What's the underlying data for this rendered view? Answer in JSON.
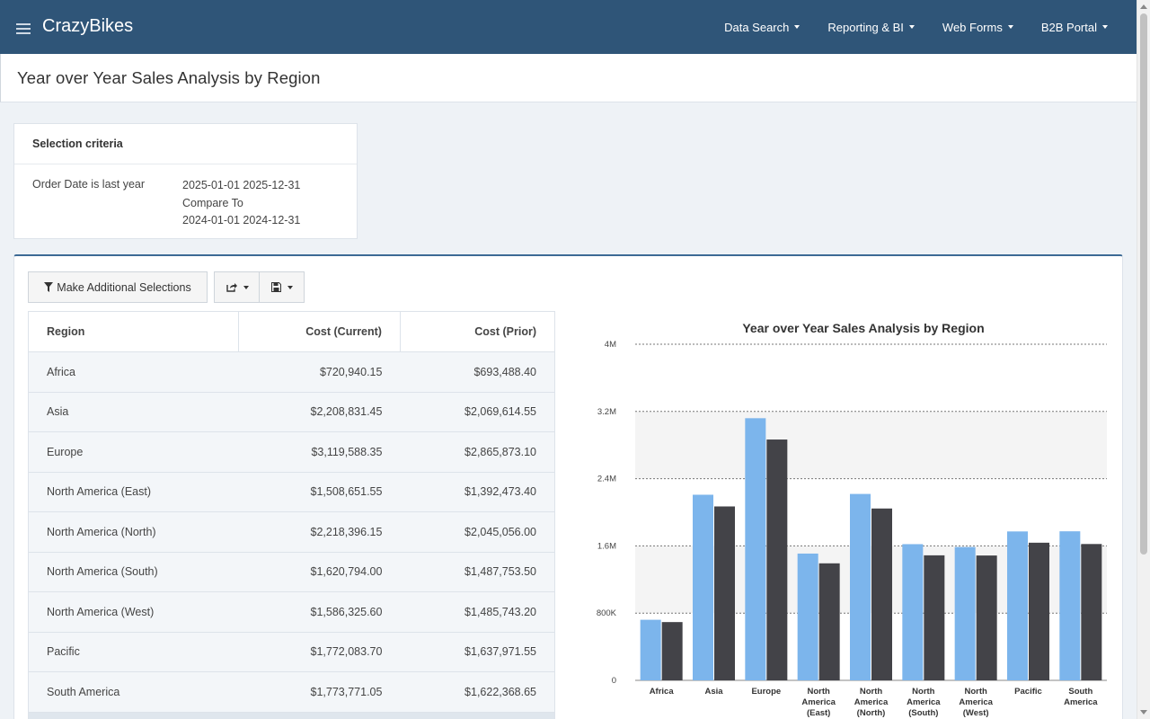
{
  "app": {
    "brand": "CrazyBikes"
  },
  "nav": [
    {
      "label": "Data Search"
    },
    {
      "label": "Reporting & BI"
    },
    {
      "label": "Web Forms"
    },
    {
      "label": "B2B Portal"
    }
  ],
  "page": {
    "title": "Year over Year Sales Analysis by Region"
  },
  "selection": {
    "heading": "Selection criteria",
    "label": "Order Date is last year",
    "current_range": "2025-01-01 2025-12-31",
    "compare_label": "Compare To",
    "prior_range": "2024-01-01 2024-12-31"
  },
  "toolbar": {
    "make_selections": "Make Additional Selections",
    "share_icon": "share-icon",
    "save_icon": "save-icon"
  },
  "table": {
    "headers": [
      "Region",
      "Cost (Current)",
      "Cost (Prior)"
    ],
    "rows": [
      [
        "Africa",
        "$720,940.15",
        "$693,488.40"
      ],
      [
        "Asia",
        "$2,208,831.45",
        "$2,069,614.55"
      ],
      [
        "Europe",
        "$3,119,588.35",
        "$2,865,873.10"
      ],
      [
        "North America (East)",
        "$1,508,651.55",
        "$1,392,473.40"
      ],
      [
        "North America (North)",
        "$2,218,396.15",
        "$2,045,056.00"
      ],
      [
        "North America (South)",
        "$1,620,794.00",
        "$1,487,753.50"
      ],
      [
        "North America (West)",
        "$1,586,325.60",
        "$1,485,743.20"
      ],
      [
        "Pacific",
        "$1,772,083.70",
        "$1,637,971.55"
      ],
      [
        "South America",
        "$1,773,771.05",
        "$1,622,368.65"
      ]
    ]
  },
  "colors": {
    "current": "#7cb5ec",
    "prior": "#434348",
    "header": "#2f5578"
  },
  "chart_data": {
    "type": "bar",
    "title": "Year over Year Sales Analysis by Region",
    "categories": [
      [
        "Africa"
      ],
      [
        "Asia"
      ],
      [
        "Europe"
      ],
      [
        "North",
        "America",
        "(East)"
      ],
      [
        "North",
        "America",
        "(North)"
      ],
      [
        "North",
        "America",
        "(South)"
      ],
      [
        "North",
        "America",
        "(West)"
      ],
      [
        "Pacific"
      ],
      [
        "South",
        "America"
      ]
    ],
    "series": [
      {
        "values": [
          720940.15,
          2208831.45,
          3119588.35,
          1508651.55,
          2218396.15,
          1620794.0,
          1586325.6,
          1772083.7,
          1773771.05
        ]
      },
      {
        "values": [
          693488.4,
          2069614.55,
          2865873.1,
          1392473.4,
          2045056.0,
          1487753.5,
          1485743.2,
          1637971.55,
          1622368.65
        ]
      }
    ],
    "yticks": [
      0,
      800000,
      1600000,
      2400000,
      3200000,
      4000000
    ],
    "ytick_labels": [
      "0",
      "800K",
      "1.6M",
      "2.4M",
      "3.2M",
      "4M"
    ],
    "ylim": [
      0,
      4000000
    ],
    "grid": true,
    "legend": "none"
  }
}
